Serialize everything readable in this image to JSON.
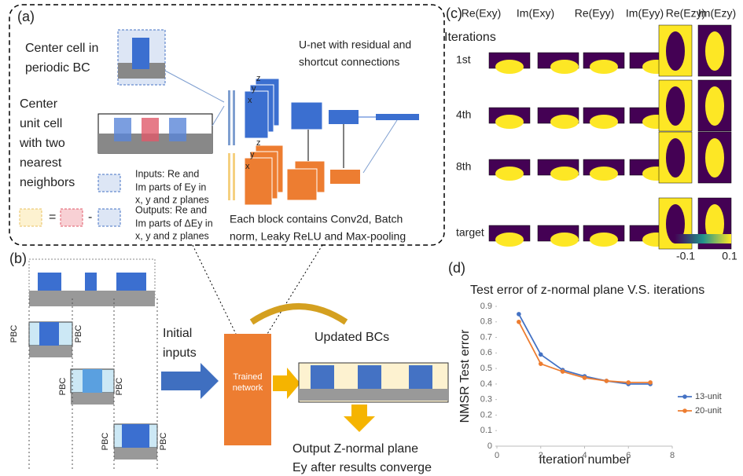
{
  "panel_a": {
    "label": "(a)",
    "center_cell": [
      "Center cell in",
      "periodic BC"
    ],
    "unit_cell": [
      "Center",
      "unit cell",
      "with two",
      "nearest",
      "neighbors"
    ],
    "inputs": [
      "Inputs: Re and",
      "Im parts of Ey in",
      "x, y and z planes"
    ],
    "outputs": [
      "Outputs: Re and",
      "Im parts of ΔEy in",
      "x, y and z planes"
    ],
    "equals": "=",
    "minus": "-",
    "unet": [
      "U-net with residual and",
      "shortcut connections"
    ],
    "block": [
      "Each block contains Conv2d, Batch",
      "norm, Leaky ReLU and Max-pooling"
    ],
    "axes_top": [
      "z",
      "y",
      "x"
    ],
    "axes_bottom": [
      "z",
      "y",
      "x"
    ]
  },
  "panel_b": {
    "label": "(b)",
    "pbc": "PBC",
    "initial": [
      "Initial",
      "inputs"
    ],
    "network": [
      "Trained",
      "network"
    ],
    "updated": "Updated BCs",
    "output": [
      "Output Z-normal plane",
      "Ey after results converge"
    ]
  },
  "panel_c": {
    "label": "(c)",
    "columns": [
      "Re(Exy)",
      "Im(Exy)",
      "Re(Eyy)",
      "Im(Eyy)",
      "Re(Ezy)",
      "Im(Ezy)"
    ],
    "row_title": "Iterations",
    "rows": [
      "1st",
      "4th",
      "8th",
      "target"
    ],
    "colorbar": {
      "min": -0.1,
      "max": 0.1
    }
  },
  "panel_d": {
    "label": "(d)"
  },
  "chart_data": {
    "type": "line",
    "title": "Test error of z-normal plane V.S. iterations",
    "x_label": "Iteration number",
    "y_label": "NMSR Test error",
    "x": [
      1,
      2,
      3,
      4,
      5,
      6,
      7
    ],
    "series": [
      {
        "name": "13-unit",
        "color": "#4472c4",
        "values": [
          0.85,
          0.59,
          0.49,
          0.45,
          0.42,
          0.4,
          0.4
        ]
      },
      {
        "name": "20-unit",
        "color": "#ed7d31",
        "values": [
          0.8,
          0.53,
          0.48,
          0.44,
          0.42,
          0.41,
          0.41
        ]
      }
    ],
    "xlim": [
      0,
      8
    ],
    "xticks": [
      0,
      2,
      4,
      6,
      8
    ],
    "ylim": [
      0,
      0.9
    ],
    "yticks": [
      0,
      0.1,
      0.2,
      0.3,
      0.4,
      0.5,
      0.6,
      0.7,
      0.8,
      0.9
    ],
    "grid": false,
    "legend": "right"
  }
}
